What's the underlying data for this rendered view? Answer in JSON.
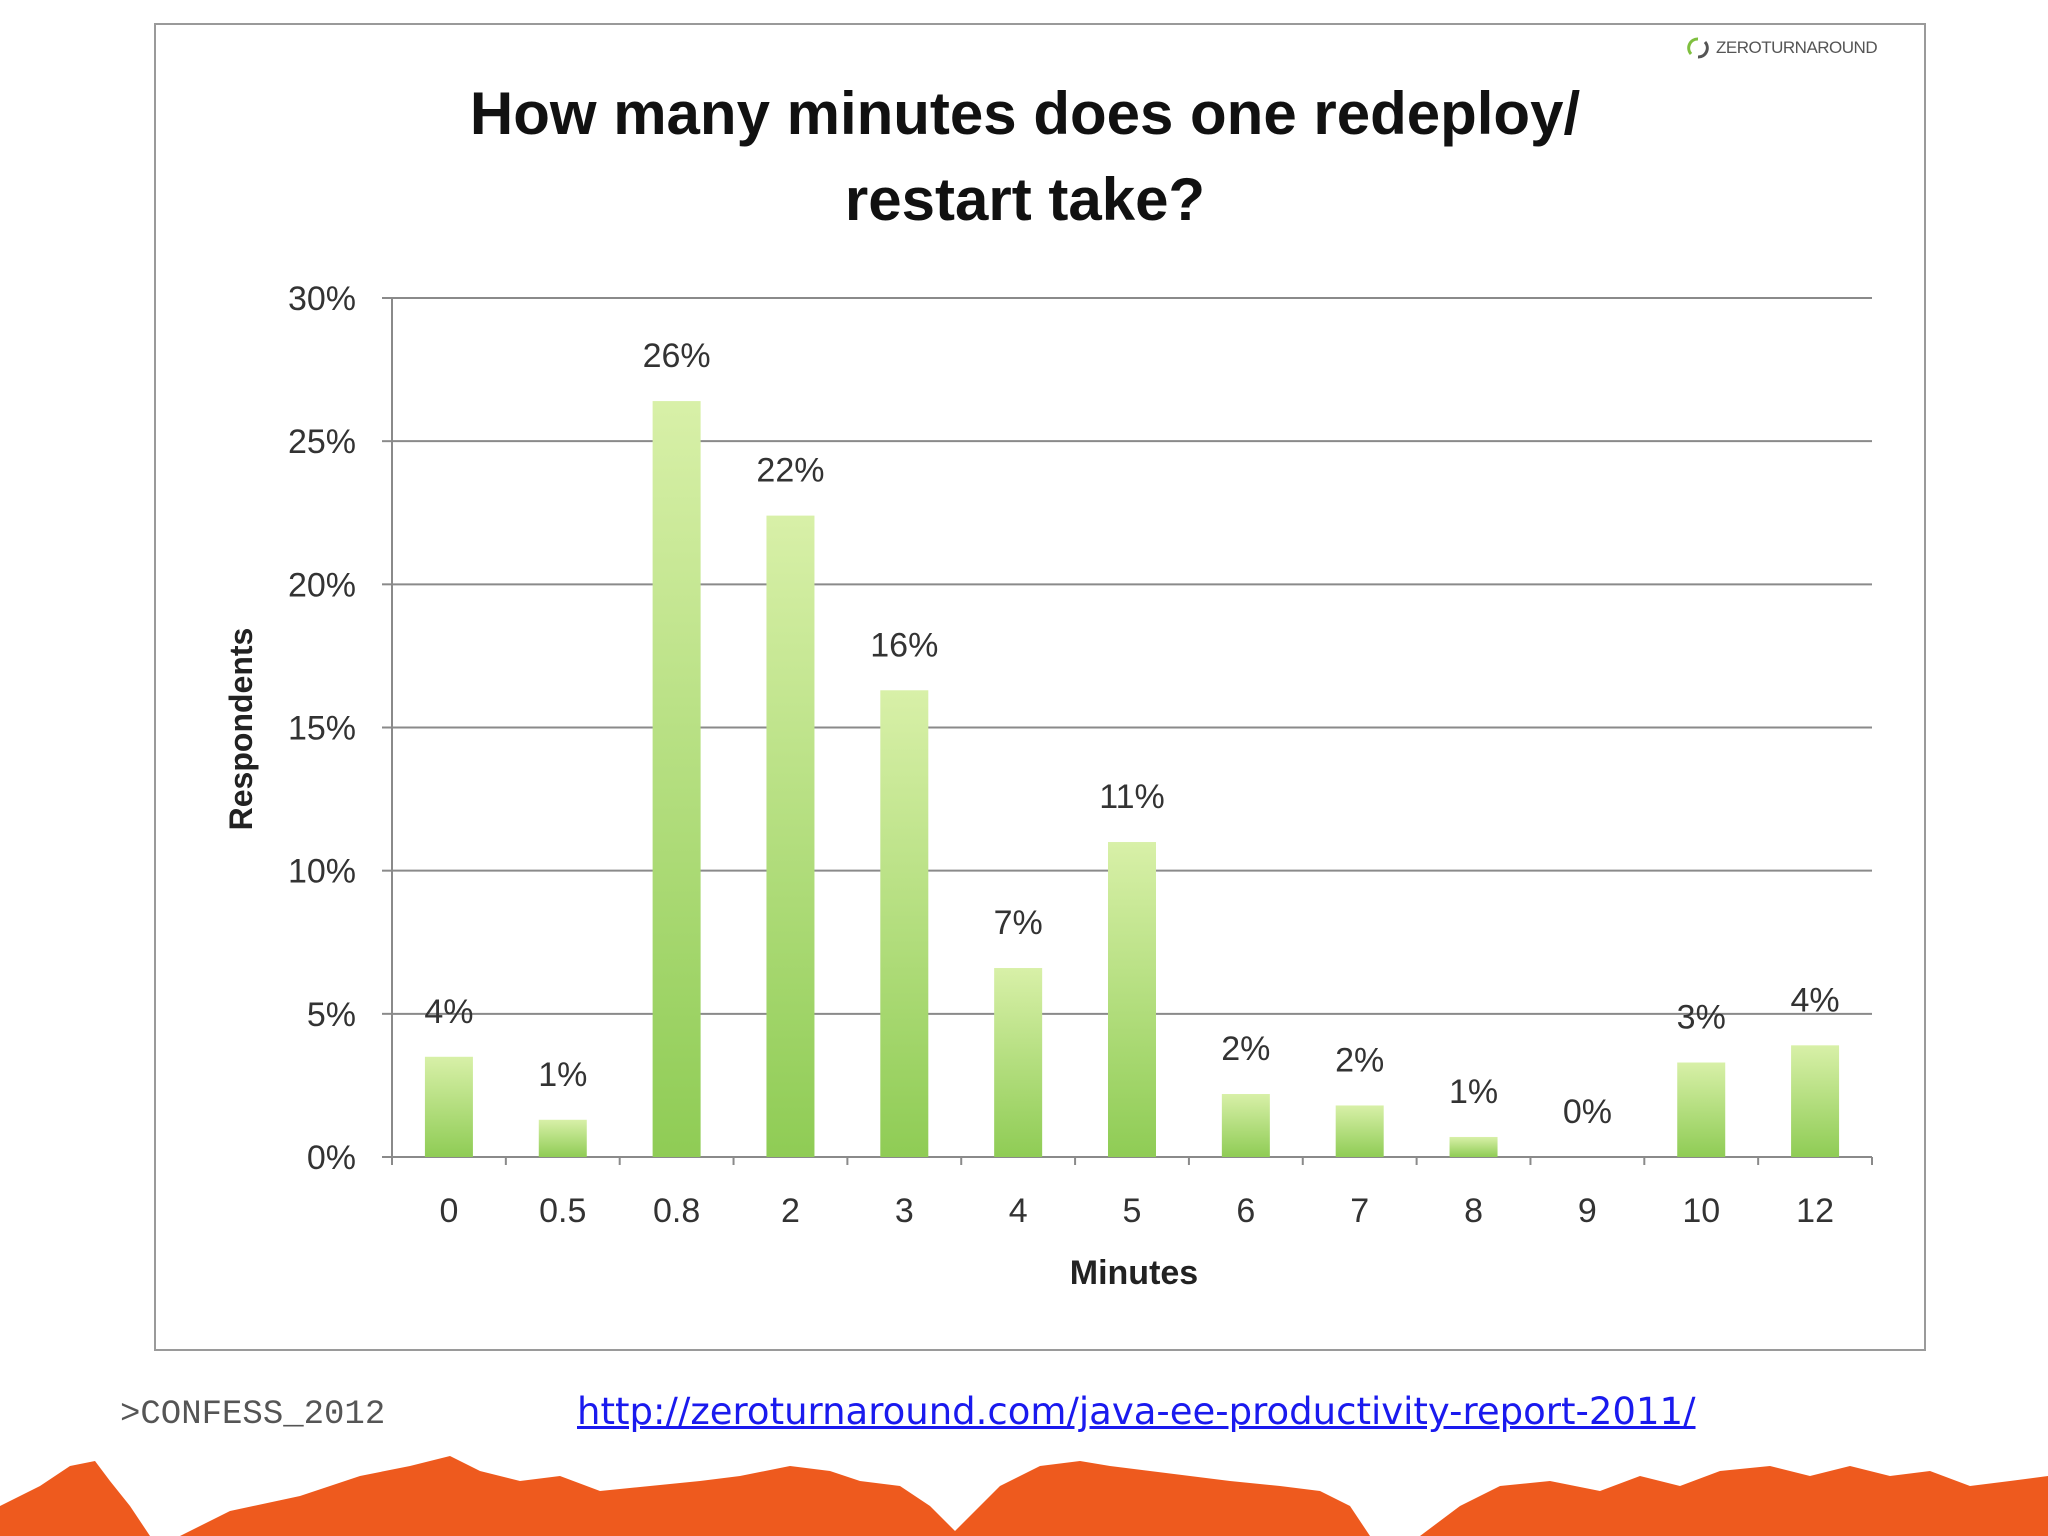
{
  "brand": {
    "name": "ZEROTURNAROUND",
    "logo_icon": "circle-arrows-icon",
    "logo_color": "#7fbf3f"
  },
  "chart_data": {
    "type": "bar",
    "title_lines": [
      "How many minutes does one redeploy/",
      "restart take?"
    ],
    "xlabel": "Minutes",
    "ylabel": "Respondents",
    "categories": [
      "0",
      "0.5",
      "0.8",
      "2",
      "3",
      "4",
      "5",
      "6",
      "7",
      "8",
      "9",
      "10",
      "12"
    ],
    "values": [
      3.5,
      1.3,
      26.4,
      22.4,
      16.3,
      6.6,
      11.0,
      2.2,
      1.8,
      0.7,
      0,
      3.3,
      3.9
    ],
    "data_labels": [
      "4%",
      "1%",
      "26%",
      "22%",
      "16%",
      "7%",
      "11%",
      "2%",
      "2%",
      "1%",
      "0%",
      "3%",
      "4%"
    ],
    "ylim": [
      0,
      30
    ],
    "y_ticks": [
      0,
      5,
      10,
      15,
      20,
      25,
      30
    ],
    "y_tick_labels": [
      "0%",
      "5%",
      "10%",
      "15%",
      "20%",
      "25%",
      "30%"
    ],
    "grid": true,
    "bar_color_light": "#d8f0a8",
    "bar_color_dark": "#8fcc55"
  },
  "footer": {
    "event": ">CONFESS_2012",
    "link": "http://zeroturnaround.com/java-ee-productivity-report-2011/",
    "mountains_icon": "mountain-range-icon",
    "mountains_color": "#ee5a1e"
  }
}
